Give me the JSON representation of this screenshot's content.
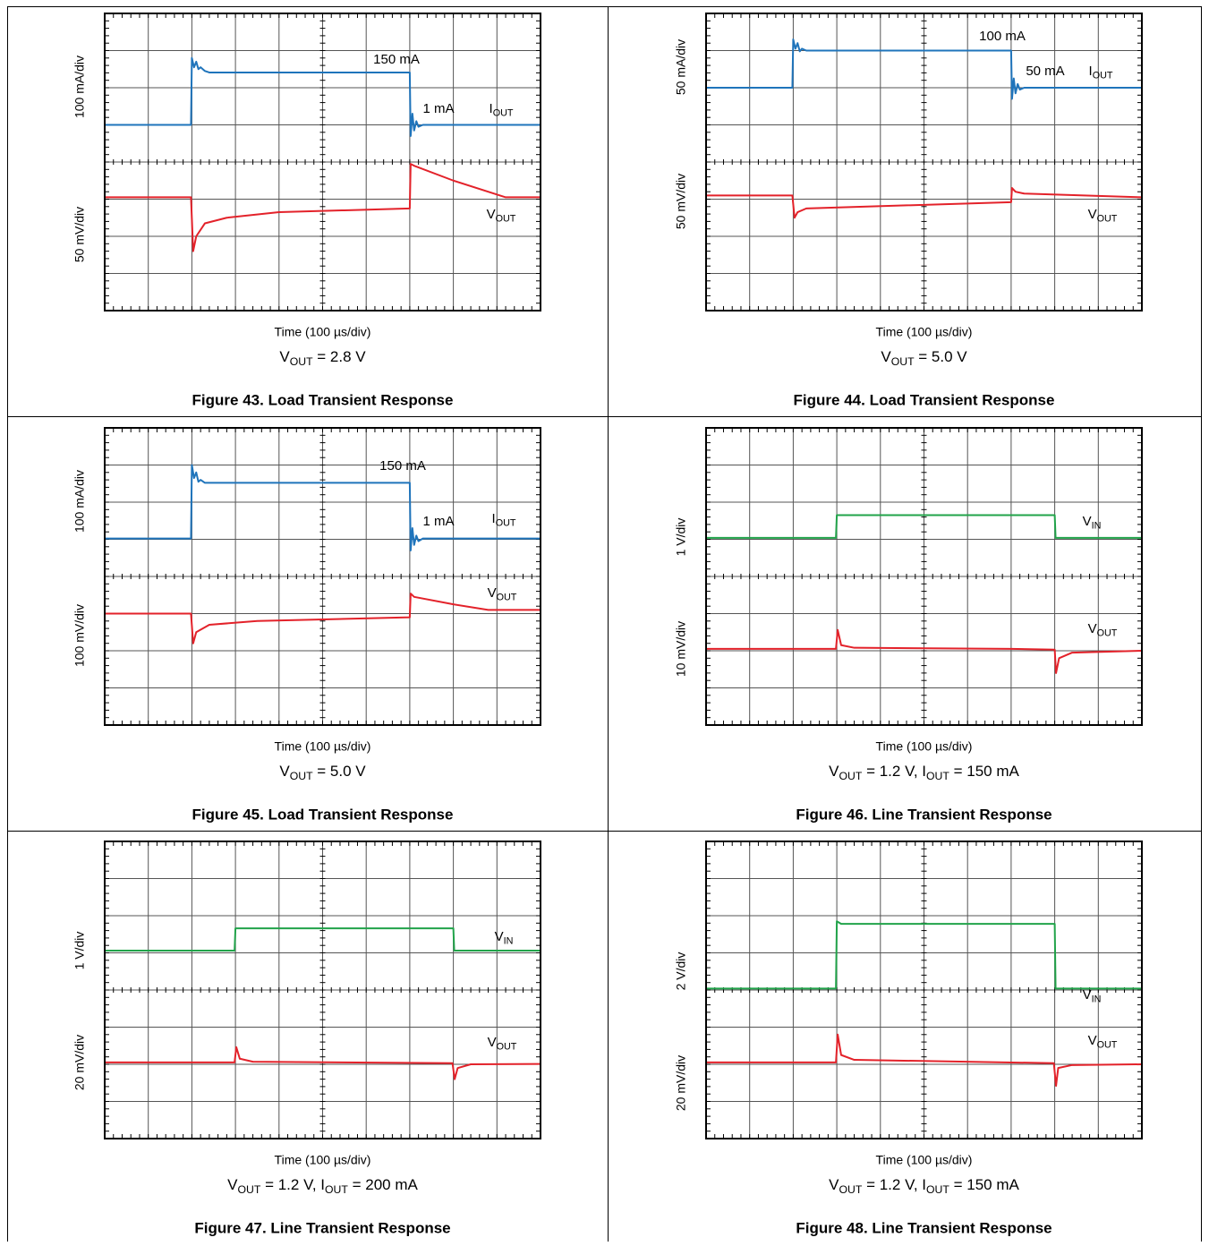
{
  "figures": [
    {
      "y_labels": [
        "100 mA/div",
        "50 mV/div"
      ],
      "annotations": [
        [
          "150 mA"
        ],
        [
          "1 mA"
        ],
        [
          "I",
          "OUT"
        ],
        [
          "V",
          "OUT"
        ]
      ],
      "x_label": "Time (100 µs/div)",
      "conditions": [
        "V",
        "OUT",
        " = 2.8 V"
      ],
      "title": "Figure 43. Load Transient Response"
    },
    {
      "y_labels": [
        "50 mA/div",
        "50 mV/div"
      ],
      "annotations": [
        [
          "100 mA"
        ],
        [
          "50 mA"
        ],
        [
          "I",
          "OUT"
        ],
        [
          "V",
          "OUT"
        ]
      ],
      "x_label": "Time (100 µs/div)",
      "conditions": [
        "V",
        "OUT",
        " = 5.0 V"
      ],
      "title": "Figure 44. Load Transient Response"
    },
    {
      "y_labels": [
        "100 mA/div",
        "100 mV/div"
      ],
      "annotations": [
        [
          "150 mA"
        ],
        [
          "1 mA"
        ],
        [
          "I",
          "OUT"
        ],
        [
          "V",
          "OUT"
        ]
      ],
      "x_label": "Time (100 µs/div)",
      "conditions": [
        "V",
        "OUT",
        " = 5.0 V"
      ],
      "title": "Figure 45. Load Transient Response"
    },
    {
      "y_labels": [
        "1 V/div",
        "10 mV/div"
      ],
      "annotations": [
        [
          "V",
          "IN"
        ],
        [
          "V",
          "OUT"
        ]
      ],
      "x_label": "Time (100 µs/div)",
      "conditions": [
        "V",
        "OUT",
        " = 1.2 V, I",
        "OUT",
        " = 150 mA"
      ],
      "title": "Figure 46. Line Transient Response"
    },
    {
      "y_labels": [
        "1 V/div",
        "20 mV/div"
      ],
      "annotations": [
        [
          "V",
          "IN"
        ],
        [
          "V",
          "OUT"
        ]
      ],
      "x_label": "Time (100 µs/div)",
      "conditions": [
        "V",
        "OUT",
        " = 1.2 V, I",
        "OUT",
        " = 200 mA"
      ],
      "title": "Figure 47. Line Transient Response"
    },
    {
      "y_labels": [
        "2 V/div",
        "20 mV/div"
      ],
      "annotations": [
        [
          "V",
          "IN"
        ],
        [
          "V",
          "OUT"
        ]
      ],
      "x_label": "Time (100 µs/div)",
      "conditions": [
        "V",
        "OUT",
        " = 1.2 V, I",
        "OUT",
        " = 150 mA"
      ],
      "title": "Figure 48. Line Transient Response"
    }
  ]
}
